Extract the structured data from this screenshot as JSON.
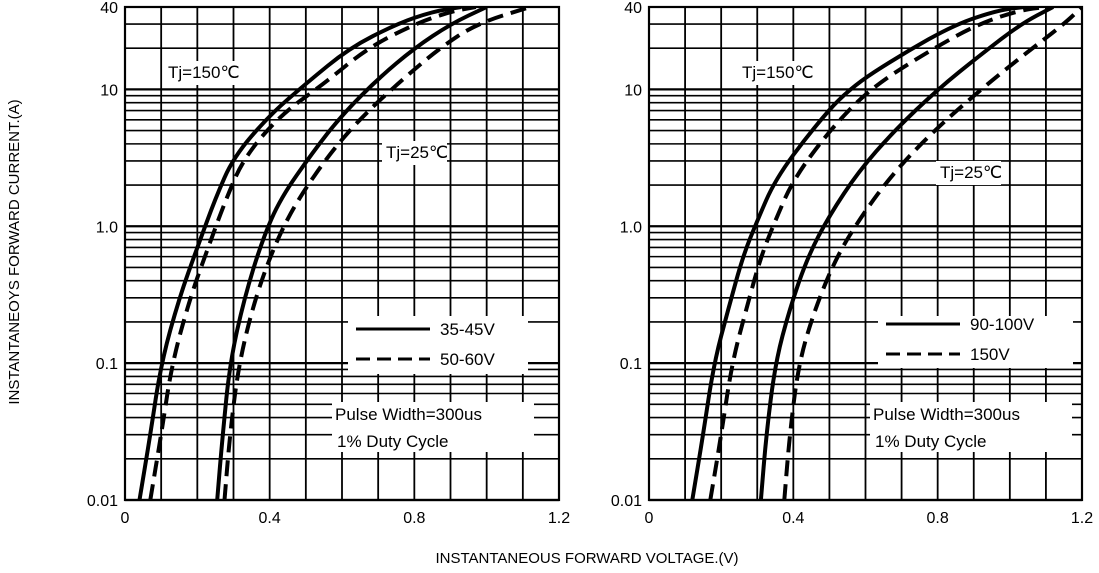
{
  "chart_data": [
    {
      "type": "line",
      "title": "",
      "ylabel": "INSTANTANEOYS FORWARD CURRENT.(A)",
      "xlabel": "INSTANTANEOUS FORWARD VOLTAGE.(V)",
      "y_scale": "log",
      "xlim": [
        0,
        1.2
      ],
      "ylim": [
        0.01,
        40
      ],
      "x_ticks": [
        "0",
        "0.4",
        "0.8",
        "1.2"
      ],
      "y_ticks": [
        {
          "value": 0.01,
          "label": "0.01"
        },
        {
          "value": 0.1,
          "label": "0.1"
        },
        {
          "value": 1,
          "label": "1.0"
        },
        {
          "value": 10,
          "label": "10"
        },
        {
          "value": 40,
          "label": "40"
        }
      ],
      "grid": true,
      "legend": {
        "placement": "right",
        "entries": [
          "35-45V",
          "50-60V"
        ]
      },
      "annotations": [
        "Tj=150℃",
        "Tj=25℃",
        "Pulse Width=300us",
        "1% Duty Cycle"
      ],
      "series": [
        {
          "name": "35-45V",
          "condition": "Tj=150℃",
          "style": "solid",
          "x": [
            0.04,
            0.07,
            0.1,
            0.15,
            0.2,
            0.25,
            0.3,
            0.4,
            0.5,
            0.62,
            0.75,
            0.85,
            0.93
          ],
          "y": [
            0.01,
            0.03,
            0.1,
            0.3,
            0.7,
            1.6,
            3.2,
            6.5,
            11,
            20,
            30,
            37,
            40
          ]
        },
        {
          "name": "50-60V",
          "condition": "Tj=150℃",
          "style": "dashed",
          "x": [
            0.07,
            0.1,
            0.13,
            0.18,
            0.23,
            0.28,
            0.33,
            0.43,
            0.55,
            0.67,
            0.8,
            0.9,
            0.97
          ],
          "y": [
            0.01,
            0.03,
            0.1,
            0.3,
            0.7,
            1.6,
            3.2,
            6.5,
            11,
            20,
            30,
            37,
            40
          ]
        },
        {
          "name": "35-45V",
          "condition": "Tj=25℃",
          "style": "solid",
          "x": [
            0.255,
            0.27,
            0.29,
            0.33,
            0.38,
            0.43,
            0.52,
            0.6,
            0.7,
            0.8,
            0.9,
            1.0
          ],
          "y": [
            0.01,
            0.03,
            0.1,
            0.3,
            0.8,
            1.6,
            3.5,
            6.5,
            12,
            20,
            30,
            40
          ]
        },
        {
          "name": "50-60V",
          "condition": "Tj=25℃",
          "style": "dashed",
          "x": [
            0.275,
            0.29,
            0.315,
            0.36,
            0.42,
            0.48,
            0.57,
            0.66,
            0.77,
            0.87,
            0.97,
            1.12
          ],
          "y": [
            0.01,
            0.03,
            0.1,
            0.3,
            0.8,
            1.6,
            3.5,
            6.5,
            12,
            20,
            30,
            40
          ]
        }
      ]
    },
    {
      "type": "line",
      "title": "",
      "ylabel": "",
      "xlabel": "INSTANTANEOUS FORWARD VOLTAGE.(V)",
      "y_scale": "log",
      "xlim": [
        0,
        1.2
      ],
      "ylim": [
        0.01,
        40
      ],
      "x_ticks": [
        "0",
        "0.4",
        "0.8",
        "1.2"
      ],
      "y_ticks": [
        {
          "value": 0.01,
          "label": "0.01"
        },
        {
          "value": 0.1,
          "label": "0.1"
        },
        {
          "value": 1,
          "label": "1.0"
        },
        {
          "value": 10,
          "label": "10"
        },
        {
          "value": 40,
          "label": "40"
        }
      ],
      "grid": true,
      "legend": {
        "placement": "right",
        "entries": [
          "90-100V",
          "150V"
        ]
      },
      "annotations": [
        "Tj=150℃",
        "Tj=25℃",
        "Pulse Width=300us",
        "1% Duty Cycle"
      ],
      "series": [
        {
          "name": "90-100V",
          "condition": "Tj=150℃",
          "style": "solid",
          "x": [
            0.12,
            0.15,
            0.18,
            0.22,
            0.26,
            0.3,
            0.35,
            0.45,
            0.55,
            0.7,
            0.85,
            0.97,
            1.04
          ],
          "y": [
            0.01,
            0.03,
            0.1,
            0.25,
            0.6,
            1.1,
            2.2,
            5,
            10,
            18,
            30,
            38,
            40
          ]
        },
        {
          "name": "150V",
          "condition": "Tj=150℃",
          "style": "dashed",
          "x": [
            0.17,
            0.2,
            0.23,
            0.27,
            0.31,
            0.35,
            0.4,
            0.5,
            0.61,
            0.76,
            0.91,
            1.03,
            1.1
          ],
          "y": [
            0.01,
            0.03,
            0.1,
            0.25,
            0.6,
            1.1,
            2.2,
            5,
            10,
            18,
            30,
            38,
            40
          ]
        },
        {
          "name": "90-100V",
          "condition": "Tj=25℃",
          "style": "solid",
          "x": [
            0.31,
            0.325,
            0.35,
            0.39,
            0.44,
            0.5,
            0.58,
            0.68,
            0.8,
            0.92,
            1.03,
            1.12
          ],
          "y": [
            0.01,
            0.03,
            0.1,
            0.25,
            0.6,
            1.2,
            2.5,
            5,
            10,
            18,
            30,
            40
          ]
        },
        {
          "name": "150V",
          "condition": "Tj=25℃",
          "style": "dashed",
          "x": [
            0.375,
            0.39,
            0.415,
            0.46,
            0.52,
            0.59,
            0.68,
            0.79,
            0.92,
            1.04,
            1.15,
            1.2
          ],
          "y": [
            0.01,
            0.03,
            0.1,
            0.25,
            0.6,
            1.2,
            2.5,
            5,
            10,
            18,
            30,
            40
          ]
        }
      ]
    }
  ]
}
